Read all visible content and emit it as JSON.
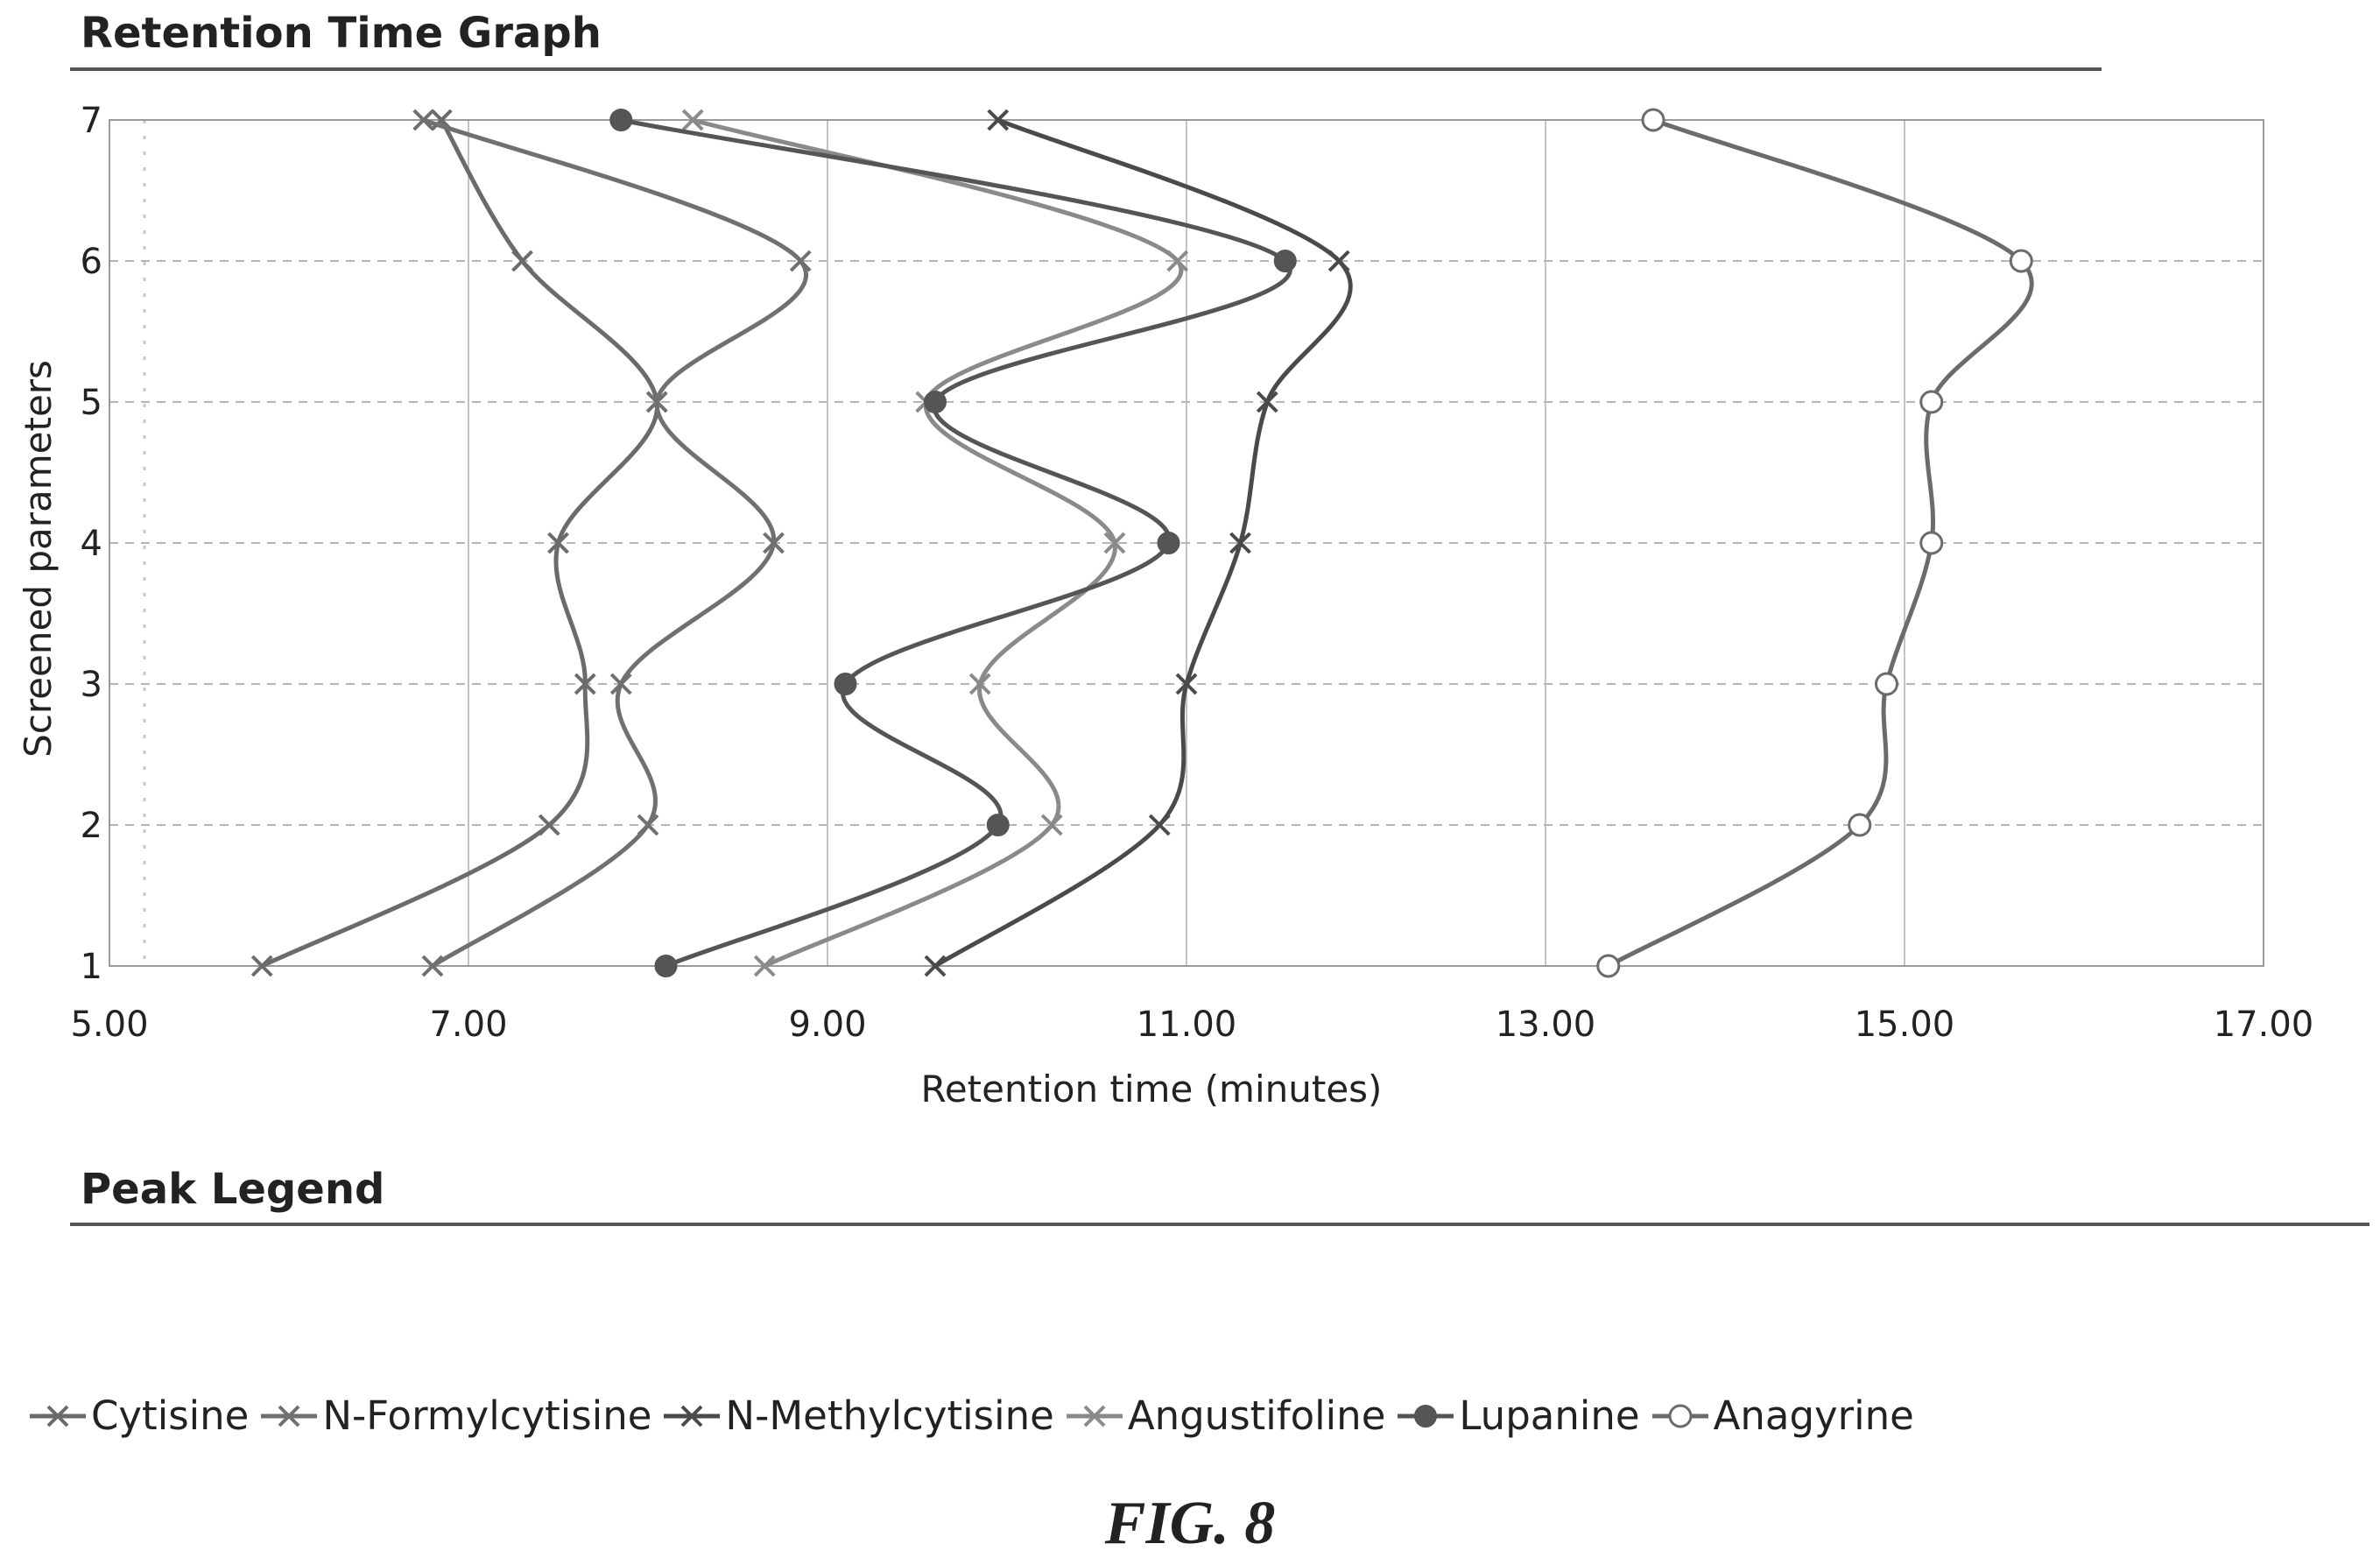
{
  "figure_caption": "FIG. 8",
  "sections": {
    "graph_title": "Retention Time Graph",
    "legend_title": "Peak Legend"
  },
  "chart_data": {
    "type": "line",
    "title": "Retention Time Graph",
    "xlabel": "Retention time (minutes)",
    "ylabel": "Screened parameters",
    "xlim": [
      5,
      17
    ],
    "ylim": [
      1,
      7
    ],
    "x_ticks": [
      "5.00",
      "7.00",
      "9.00",
      "11.00",
      "13.00",
      "15.00",
      "17.00"
    ],
    "y_ticks": [
      "1",
      "2",
      "3",
      "4",
      "5",
      "6",
      "7"
    ],
    "grid": "dashed",
    "legend_position": "bottom",
    "y": [
      1,
      2,
      3,
      4,
      5,
      6,
      7
    ],
    "series": [
      {
        "name": "Cytisine",
        "marker": "x",
        "color": "#6b6b6b",
        "x": [
          5.85,
          7.45,
          7.65,
          7.5,
          8.05,
          7.3,
          6.85
        ]
      },
      {
        "name": "N-Formylcytisine",
        "marker": "x",
        "color": "#707070",
        "x": [
          6.8,
          8.0,
          7.85,
          8.7,
          8.05,
          8.85,
          6.75
        ]
      },
      {
        "name": "N-Methylcytisine",
        "marker": "x",
        "color": "#4a4a4a",
        "x": [
          9.6,
          10.85,
          11.0,
          11.3,
          11.45,
          11.85,
          9.95
        ]
      },
      {
        "name": "Angustifoline",
        "marker": "x",
        "color": "#8a8a8a",
        "x": [
          8.65,
          10.25,
          9.85,
          10.6,
          9.55,
          10.95,
          8.25
        ]
      },
      {
        "name": "Lupanine",
        "marker": "filled-circle",
        "color": "#555555",
        "x": [
          8.1,
          9.95,
          9.1,
          10.9,
          9.6,
          11.55,
          7.85
        ]
      },
      {
        "name": "Anagyrine",
        "marker": "open-circle",
        "color": "#6b6b6b",
        "x": [
          13.35,
          14.75,
          14.9,
          15.15,
          15.15,
          15.65,
          13.6
        ]
      }
    ]
  }
}
